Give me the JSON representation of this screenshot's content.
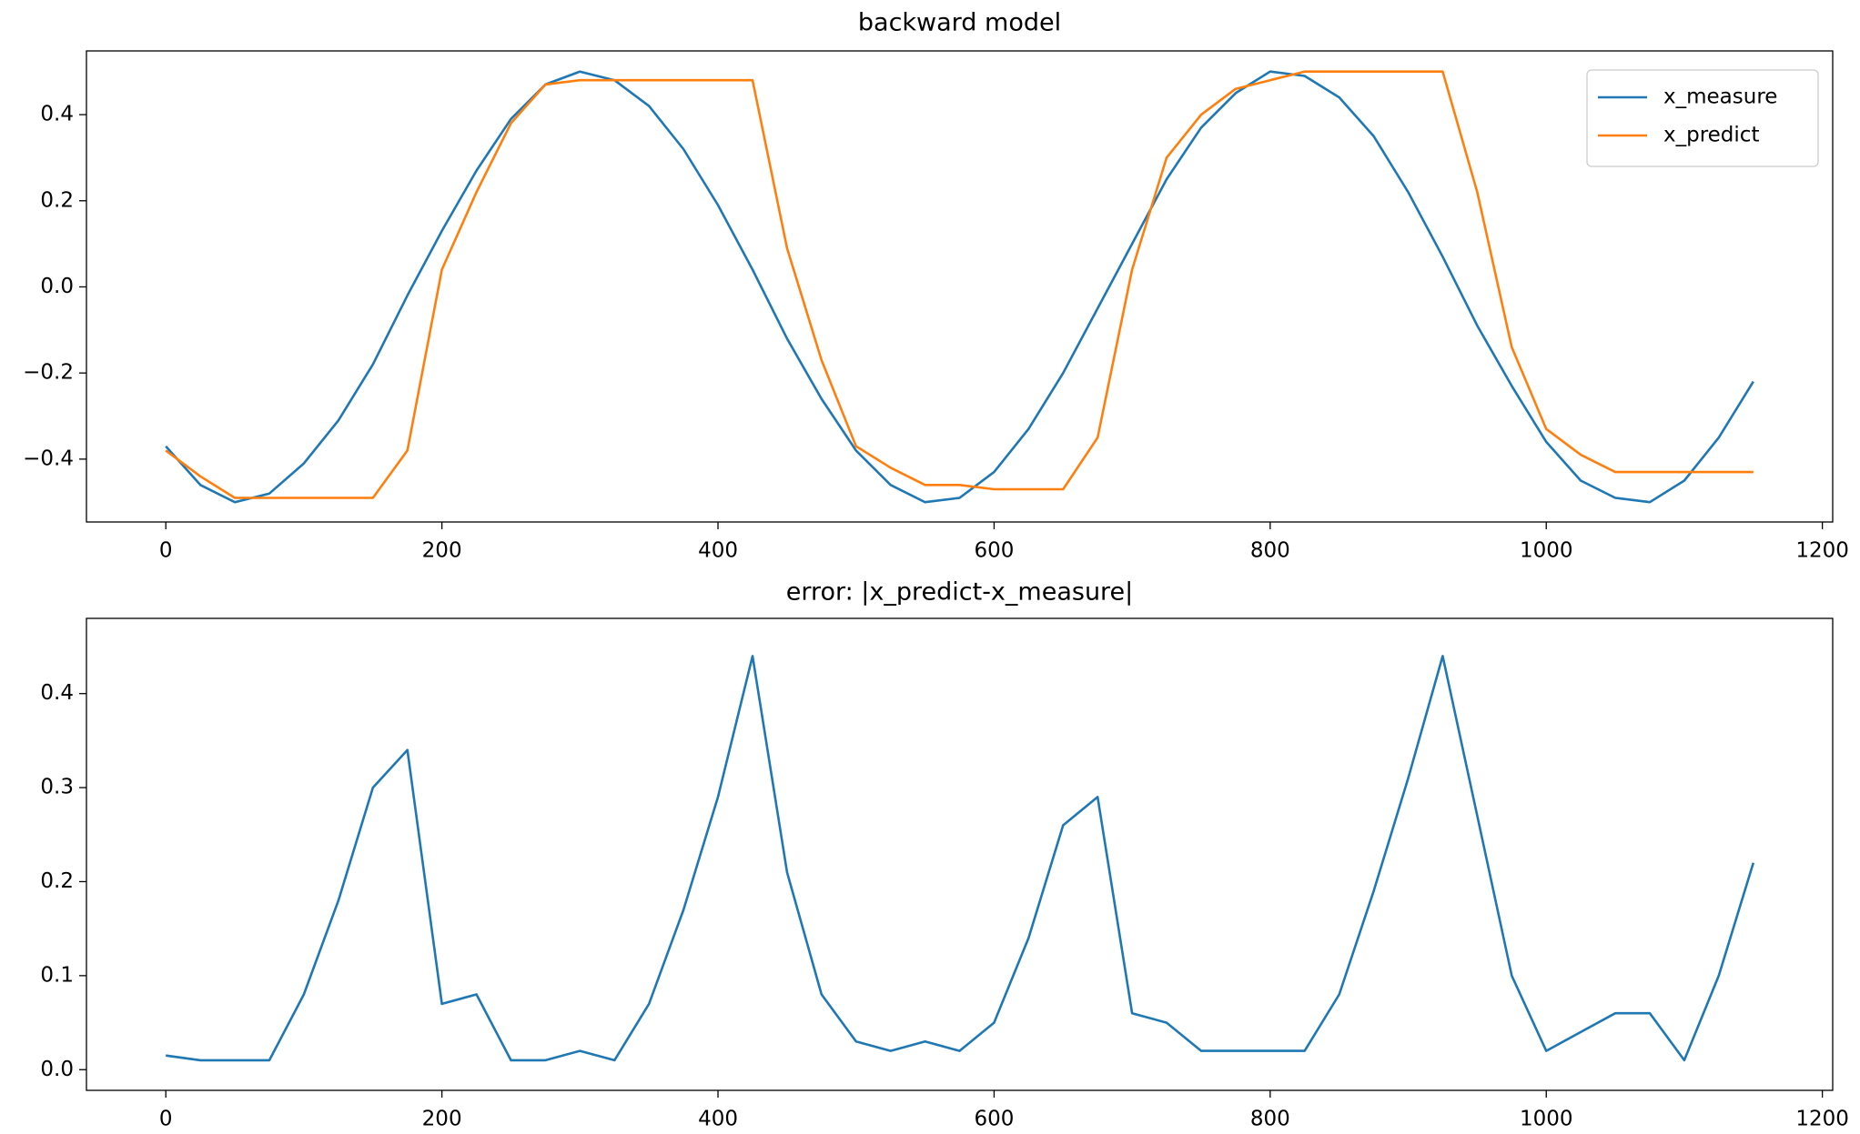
{
  "chart_data": [
    {
      "type": "line",
      "title": "backward model",
      "x": [
        0,
        25,
        50,
        75,
        100,
        125,
        150,
        175,
        200,
        225,
        250,
        275,
        300,
        325,
        350,
        375,
        400,
        425,
        450,
        475,
        500,
        525,
        550,
        575,
        600,
        625,
        650,
        675,
        700,
        725,
        750,
        775,
        800,
        825,
        850,
        875,
        900,
        925,
        950,
        975,
        1000,
        1025,
        1050,
        1075,
        1100,
        1125,
        1150
      ],
      "series": [
        {
          "name": "x_measure",
          "color": "#1f77b4",
          "values": [
            -0.37,
            -0.46,
            -0.5,
            -0.48,
            -0.41,
            -0.31,
            -0.18,
            -0.02,
            0.13,
            0.27,
            0.39,
            0.47,
            0.5,
            0.48,
            0.42,
            0.32,
            0.19,
            0.04,
            -0.12,
            -0.26,
            -0.38,
            -0.46,
            -0.5,
            -0.49,
            -0.43,
            -0.33,
            -0.2,
            -0.05,
            0.1,
            0.25,
            0.37,
            0.45,
            0.5,
            0.49,
            0.44,
            0.35,
            0.22,
            0.07,
            -0.09,
            -0.23,
            -0.36,
            -0.45,
            -0.49,
            -0.5,
            -0.45,
            -0.35,
            -0.22
          ]
        },
        {
          "name": "x_predict",
          "color": "#ff7f0e",
          "values": [
            -0.38,
            -0.44,
            -0.49,
            -0.49,
            -0.49,
            -0.49,
            -0.49,
            -0.38,
            0.04,
            0.22,
            0.38,
            0.47,
            0.48,
            0.48,
            0.48,
            0.48,
            0.48,
            0.48,
            0.09,
            -0.17,
            -0.37,
            -0.42,
            -0.46,
            -0.46,
            -0.47,
            -0.47,
            -0.47,
            -0.35,
            0.04,
            0.3,
            0.4,
            0.46,
            0.48,
            0.5,
            0.5,
            0.5,
            0.5,
            0.5,
            0.22,
            -0.14,
            -0.33,
            -0.39,
            -0.43,
            -0.43,
            -0.43,
            -0.43,
            -0.43
          ]
        }
      ],
      "xlim": [
        -57.5,
        1207.5
      ],
      "xticks": [
        0,
        200,
        400,
        600,
        800,
        1000,
        1200
      ],
      "ylim": [
        -0.546,
        0.548
      ],
      "yticks": [
        {
          "value": -0.4,
          "label": "−0.4"
        },
        {
          "value": -0.2,
          "label": "−0.2"
        },
        {
          "value": 0,
          "label": "0.0"
        },
        0.2,
        0.4
      ],
      "legend": "upper right"
    },
    {
      "type": "line",
      "title": "error: |x_predict-x_measure|",
      "x": [
        0,
        25,
        50,
        75,
        100,
        125,
        150,
        175,
        200,
        225,
        250,
        275,
        300,
        325,
        350,
        375,
        400,
        425,
        450,
        475,
        500,
        525,
        550,
        575,
        600,
        625,
        650,
        675,
        700,
        725,
        750,
        775,
        800,
        825,
        850,
        875,
        900,
        925,
        950,
        975,
        1000,
        1025,
        1050,
        1075,
        1100,
        1125,
        1150
      ],
      "series": [
        {
          "color": "#1f77b4",
          "values": [
            0.015,
            0.01,
            0.01,
            0.01,
            0.08,
            0.18,
            0.3,
            0.34,
            0.07,
            0.08,
            0.01,
            0.01,
            0.02,
            0.01,
            0.07,
            0.17,
            0.29,
            0.44,
            0.21,
            0.08,
            0.03,
            0.02,
            0.03,
            0.02,
            0.05,
            0.14,
            0.26,
            0.29,
            0.06,
            0.05,
            0.02,
            0.02,
            0.02,
            0.02,
            0.08,
            0.19,
            0.31,
            0.44,
            0.27,
            0.1,
            0.02,
            0.04,
            0.06,
            0.06,
            0.01,
            0.1,
            0.22
          ]
        }
      ],
      "xlim": [
        -57.5,
        1207.5
      ],
      "xticks": [
        0,
        200,
        400,
        600,
        800,
        1000,
        1200
      ],
      "ylim": [
        -0.022,
        0.48
      ],
      "yticks": [
        {
          "value": 0,
          "label": "0.0"
        },
        0.1,
        0.2,
        0.3,
        0.4
      ]
    }
  ]
}
